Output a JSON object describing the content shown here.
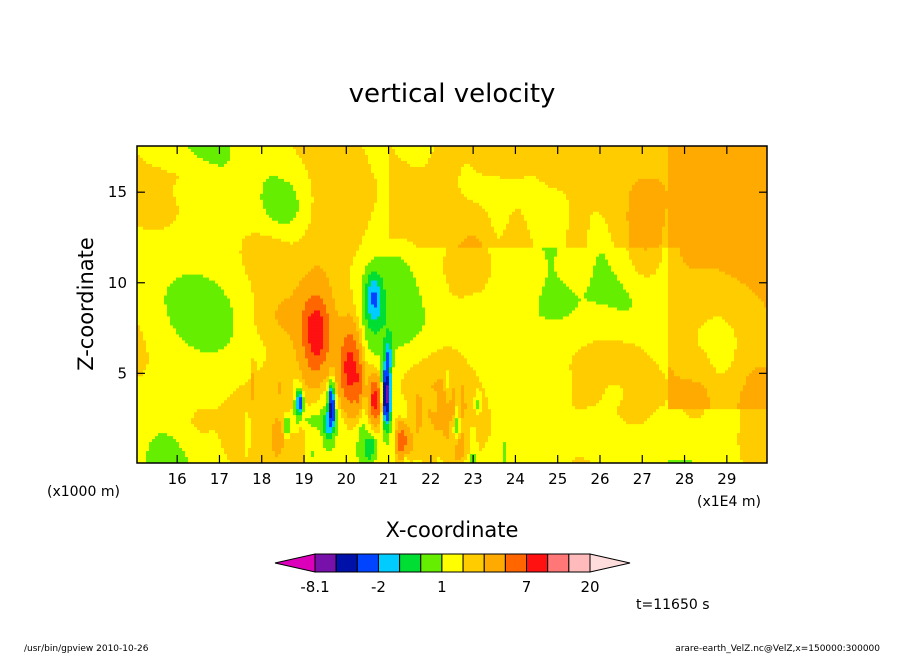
{
  "chart_data": {
    "type": "heatmap",
    "title": "vertical velocity",
    "xlabel": "X-coordinate",
    "ylabel": "Z-coordinate",
    "x_unit_label": "(x1E4 m)",
    "y_unit_label": "(x1000 m)",
    "xlim": [
      15.05,
      29.95
    ],
    "ylim": [
      0.05,
      17.55
    ],
    "x_ticks": [
      16,
      17,
      18,
      19,
      20,
      21,
      22,
      23,
      24,
      25,
      26,
      27,
      28,
      29
    ],
    "y_ticks": [
      5,
      10,
      15
    ],
    "time_label": "t=11650 s",
    "colorbar": {
      "levels": [
        -8.1,
        -6,
        -4,
        -2,
        -1,
        0,
        1,
        2,
        3,
        5,
        7,
        10,
        15,
        20
      ],
      "colors": [
        "#dd00bb",
        "#7711aa",
        "#0011aa",
        "#0044ff",
        "#00ccff",
        "#00dd33",
        "#66ee00",
        "#ffff00",
        "#ffcc00",
        "#ffaa00",
        "#ff6600",
        "#ff1111",
        "#ff7777",
        "#ffbbbb",
        "#ffdddd"
      ],
      "labels": [
        {
          "text": "-8.1",
          "value": -8.1
        },
        {
          "text": "-2",
          "value": -2
        },
        {
          "text": "1",
          "value": 1
        },
        {
          "text": "7",
          "value": 7
        },
        {
          "text": "20",
          "value": 20
        }
      ]
    },
    "features": [
      {
        "kind": "updraft",
        "x": 19.3,
        "z": 7.0,
        "rx": 0.35,
        "rz": 2.4,
        "amp": 6
      },
      {
        "kind": "updraft",
        "x": 20.1,
        "z": 5.2,
        "rx": 0.28,
        "rz": 2.6,
        "amp": 7
      },
      {
        "kind": "updraft",
        "x": 21.3,
        "z": 1.2,
        "rx": 0.12,
        "rz": 1.0,
        "amp": 5
      },
      {
        "kind": "updraft",
        "x": 20.7,
        "z": 3.4,
        "rx": 0.15,
        "rz": 1.3,
        "amp": 6
      },
      {
        "kind": "downdraft",
        "x": 20.95,
        "z": 3.8,
        "rx": 0.1,
        "rz": 1.5,
        "amp": -9
      },
      {
        "kind": "downdraft",
        "x": 19.65,
        "z": 3.2,
        "rx": 0.08,
        "rz": 1.3,
        "amp": -6
      },
      {
        "kind": "downdraft",
        "x": 18.9,
        "z": 3.4,
        "rx": 0.08,
        "rz": 0.7,
        "amp": -5
      },
      {
        "kind": "downdraft",
        "x": 20.65,
        "z": 9.2,
        "rx": 0.22,
        "rz": 1.4,
        "amp": -3
      },
      {
        "kind": "downdraft",
        "x": 21.0,
        "z": 6.0,
        "rx": 0.1,
        "rz": 1.0,
        "amp": -2.5
      },
      {
        "kind": "downdraft",
        "x": 18.6,
        "z": 2.0,
        "rx": 0.08,
        "rz": 0.6,
        "amp": -2.5
      }
    ]
  },
  "footer": {
    "left": "/usr/bin/gpview   2010-10-26",
    "right": "arare-earth_VelZ.nc@VelZ,x=150000:300000"
  }
}
